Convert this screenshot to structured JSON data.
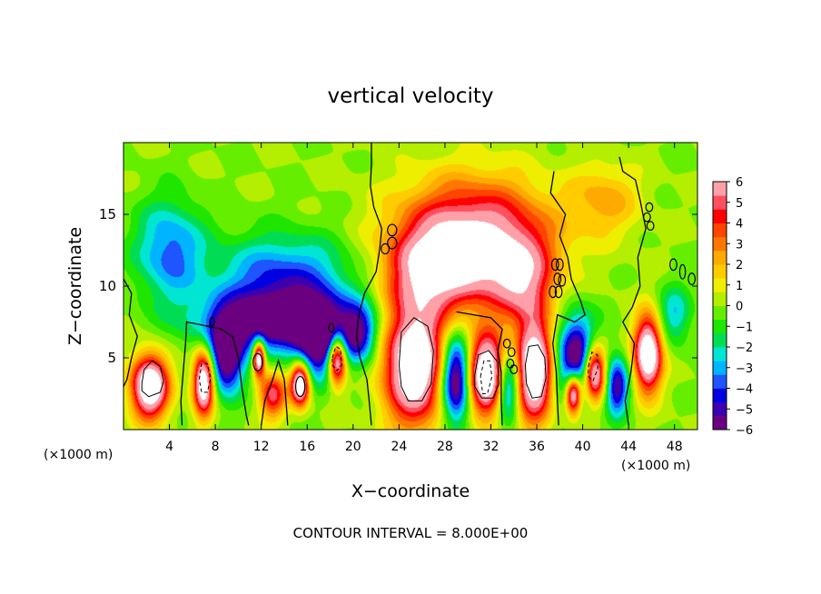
{
  "chart_data": {
    "type": "heatmap",
    "title": "vertical velocity",
    "xlabel": "X−coordinate",
    "ylabel": "Z−coordinate",
    "x_unit_left": "(×1000 m)",
    "x_unit_right": "(×1000 m)",
    "footer": "CONTOUR INTERVAL = 8.000E+00",
    "xlim": [
      0,
      50
    ],
    "ylim": [
      0,
      20
    ],
    "x_ticks": [
      4,
      8,
      12,
      16,
      20,
      24,
      28,
      32,
      36,
      40,
      44,
      48
    ],
    "y_ticks": [
      5,
      10,
      15
    ],
    "colorbar": {
      "range": [
        -6,
        6
      ],
      "labels": [
        "6",
        "5",
        "4",
        "3",
        "2",
        "1",
        "0",
        "−1",
        "−2",
        "−3",
        "−4",
        "−5",
        "−6"
      ],
      "colors": [
        "#6a0080",
        "#3c00b0",
        "#0000e0",
        "#1e55ff",
        "#00b4ff",
        "#00e6d2",
        "#00dd55",
        "#1ee600",
        "#66ee00",
        "#b4ee00",
        "#eeee00",
        "#ffcc00",
        "#ffaa00",
        "#ff7700",
        "#ff4400",
        "#ff0000",
        "#ff5060",
        "#ffa0a8"
      ]
    },
    "features": [
      {
        "x": 2.3,
        "z": 3.0,
        "w": 1.6,
        "h": 2.2,
        "sign": 1
      },
      {
        "x": 7.0,
        "z": 3.3,
        "w": 0.9,
        "h": 2.2,
        "sign": 1
      },
      {
        "x": 11.8,
        "z": 5.0,
        "w": 0.5,
        "h": 1.2,
        "sign": 1
      },
      {
        "x": 15.4,
        "z": 3.2,
        "w": 0.8,
        "h": 1.5,
        "sign": 1
      },
      {
        "x": 18.6,
        "z": 5.0,
        "w": 0.8,
        "h": 1.8,
        "sign": 1
      },
      {
        "x": 25.3,
        "z": 4.6,
        "w": 2.6,
        "h": 4.2,
        "sign": 1
      },
      {
        "x": 31.6,
        "z": 3.8,
        "w": 1.7,
        "h": 2.8,
        "sign": 1
      },
      {
        "x": 35.8,
        "z": 4.2,
        "w": 1.6,
        "h": 3.6,
        "sign": 1
      },
      {
        "x": 41.0,
        "z": 4.0,
        "w": 1.0,
        "h": 2.0,
        "sign": 1
      },
      {
        "x": 45.7,
        "z": 5.3,
        "w": 1.2,
        "h": 2.6,
        "sign": 1
      },
      {
        "x": 39.2,
        "z": 2.5,
        "w": 0.7,
        "h": 1.4,
        "sign": 1
      },
      {
        "x": 13.0,
        "z": 2.4,
        "w": 1.2,
        "h": 1.6,
        "sign": 0.55
      },
      {
        "x": 30.5,
        "z": 13.5,
        "w": 6.5,
        "h": 4.0,
        "sign": 0.7
      },
      {
        "x": 27.0,
        "z": 11.0,
        "w": 4.0,
        "h": 3.0,
        "sign": 0.55
      },
      {
        "x": 34.5,
        "z": 10.5,
        "w": 3.0,
        "h": 3.0,
        "sign": 0.5
      },
      {
        "x": 13.5,
        "z": 7.5,
        "w": 6.5,
        "h": 2.0,
        "sign": -0.7
      },
      {
        "x": 9.0,
        "z": 5.0,
        "w": 1.5,
        "h": 2.5,
        "sign": -0.75
      },
      {
        "x": 17.0,
        "z": 6.0,
        "w": 2.0,
        "h": 2.5,
        "sign": -0.65
      },
      {
        "x": 14.0,
        "z": 10.5,
        "w": 6.0,
        "h": 3.0,
        "sign": -0.45
      },
      {
        "x": 4.0,
        "z": 12.5,
        "w": 3.0,
        "h": 3.5,
        "sign": -0.4
      },
      {
        "x": 29.0,
        "z": 3.5,
        "w": 1.3,
        "h": 3.0,
        "sign": -0.85
      },
      {
        "x": 33.5,
        "z": 3.0,
        "w": 1.0,
        "h": 2.5,
        "sign": -0.6
      },
      {
        "x": 39.5,
        "z": 5.0,
        "w": 1.8,
        "h": 3.0,
        "sign": -0.75
      },
      {
        "x": 43.0,
        "z": 3.0,
        "w": 1.0,
        "h": 2.0,
        "sign": -0.6
      },
      {
        "x": 20.5,
        "z": 6.5,
        "w": 1.5,
        "h": 2.0,
        "sign": -0.5
      },
      {
        "x": 48.0,
        "z": 8.0,
        "w": 1.5,
        "h": 2.0,
        "sign": -0.3
      },
      {
        "x": 42.0,
        "z": 16.0,
        "w": 3.0,
        "h": 2.5,
        "sign": 0.25
      }
    ],
    "zero_contours": [
      [
        [
          21.6,
          20.0
        ],
        [
          21.6,
          18.5
        ],
        [
          21.5,
          17.0
        ],
        [
          21.8,
          15.5
        ],
        [
          22.5,
          14.0
        ],
        [
          22.3,
          12.5
        ],
        [
          22.0,
          11.0
        ],
        [
          21.0,
          9.5
        ],
        [
          20.5,
          8.0
        ],
        [
          20.3,
          6.5
        ],
        [
          20.6,
          5.0
        ],
        [
          21.2,
          3.5
        ],
        [
          21.4,
          2.0
        ],
        [
          21.6,
          0.3
        ]
      ],
      [
        [
          37.5,
          18.0
        ],
        [
          37.2,
          16.5
        ],
        [
          38.5,
          15.0
        ],
        [
          38.0,
          13.5
        ],
        [
          38.7,
          12.0
        ],
        [
          39.0,
          10.5
        ],
        [
          39.8,
          9.0
        ],
        [
          40.2,
          8.0
        ],
        [
          39.3,
          7.5
        ],
        [
          37.8,
          8.0
        ],
        [
          37.4,
          6.0
        ],
        [
          37.7,
          4.0
        ],
        [
          37.8,
          2.0
        ],
        [
          37.9,
          0.3
        ]
      ],
      [
        [
          43.2,
          19.0
        ],
        [
          43.5,
          18.0
        ],
        [
          44.6,
          17.4
        ],
        [
          45.0,
          16.0
        ],
        [
          45.5,
          14.0
        ],
        [
          44.8,
          12.0
        ],
        [
          45.0,
          10.0
        ],
        [
          44.3,
          8.5
        ],
        [
          43.5,
          7.5
        ],
        [
          44.5,
          6.0
        ],
        [
          44.2,
          4.0
        ],
        [
          43.7,
          2.0
        ],
        [
          44.0,
          0.3
        ]
      ],
      [
        [
          0.0,
          10.5
        ],
        [
          0.7,
          9.5
        ],
        [
          0.5,
          8.0
        ],
        [
          1.2,
          6.5
        ],
        [
          0.7,
          5.0
        ],
        [
          0.3,
          3.5
        ],
        [
          0.0,
          3.0
        ]
      ],
      [
        [
          5.1,
          0.3
        ],
        [
          5.0,
          2.0
        ],
        [
          5.2,
          4.0
        ],
        [
          5.4,
          6.0
        ],
        [
          5.5,
          7.5
        ],
        [
          6.8,
          7.3
        ],
        [
          8.5,
          7.0
        ],
        [
          9.5,
          6.5
        ],
        [
          10.0,
          5.0
        ],
        [
          10.3,
          3.0
        ],
        [
          10.7,
          1.0
        ],
        [
          10.9,
          0.3
        ]
      ],
      [
        [
          12.0,
          0.3
        ],
        [
          12.3,
          2.0
        ],
        [
          13.0,
          3.5
        ],
        [
          13.5,
          4.8
        ],
        [
          14.0,
          3.5
        ],
        [
          14.2,
          1.5
        ],
        [
          14.3,
          0.3
        ]
      ],
      [
        [
          29.0,
          8.2
        ],
        [
          30.5,
          8.0
        ],
        [
          32.0,
          7.8
        ],
        [
          33.0,
          7.0
        ],
        [
          32.6,
          5.5
        ],
        [
          32.9,
          4.0
        ],
        [
          32.9,
          2.0
        ],
        [
          33.0,
          0.3
        ]
      ]
    ],
    "pos_contours": [
      [
        [
          1.6,
          3.2
        ],
        [
          1.8,
          4.2
        ],
        [
          2.5,
          4.8
        ],
        [
          3.2,
          4.4
        ],
        [
          3.5,
          3.4
        ],
        [
          3.2,
          2.6
        ],
        [
          2.2,
          2.3
        ],
        [
          1.6,
          2.7
        ],
        [
          1.6,
          3.2
        ]
      ],
      [
        [
          24.0,
          4.5
        ],
        [
          24.2,
          6.8
        ],
        [
          25.3,
          7.8
        ],
        [
          26.5,
          7.2
        ],
        [
          27.0,
          5.5
        ],
        [
          26.8,
          3.2
        ],
        [
          26.0,
          2.0
        ],
        [
          24.8,
          2.0
        ],
        [
          24.2,
          3.0
        ],
        [
          24.0,
          4.5
        ]
      ],
      [
        [
          30.6,
          3.8
        ],
        [
          30.9,
          5.2
        ],
        [
          31.8,
          5.5
        ],
        [
          32.6,
          4.7
        ],
        [
          32.7,
          3.2
        ],
        [
          32.2,
          2.2
        ],
        [
          31.2,
          2.2
        ],
        [
          30.6,
          3.0
        ],
        [
          30.6,
          3.8
        ]
      ],
      [
        [
          35.0,
          4.5
        ],
        [
          35.3,
          5.8
        ],
        [
          36.1,
          5.9
        ],
        [
          36.7,
          5.0
        ],
        [
          36.8,
          3.6
        ],
        [
          36.4,
          2.3
        ],
        [
          35.6,
          2.2
        ],
        [
          35.1,
          3.2
        ],
        [
          35.0,
          4.5
        ]
      ]
    ],
    "neg_contours": [
      [
        [
          6.6,
          3.5
        ],
        [
          6.8,
          4.6
        ],
        [
          7.3,
          4.6
        ],
        [
          7.6,
          3.6
        ],
        [
          7.3,
          2.6
        ],
        [
          6.8,
          2.6
        ],
        [
          6.6,
          3.5
        ]
      ],
      [
        [
          18.2,
          5.0
        ],
        [
          18.5,
          5.8
        ],
        [
          18.9,
          5.6
        ],
        [
          19.0,
          4.5
        ],
        [
          18.6,
          4.1
        ],
        [
          18.2,
          4.5
        ],
        [
          18.2,
          5.0
        ]
      ],
      [
        [
          31.1,
          3.7
        ],
        [
          31.4,
          4.8
        ],
        [
          31.9,
          4.8
        ],
        [
          32.1,
          3.7
        ],
        [
          31.7,
          2.5
        ],
        [
          31.3,
          2.5
        ],
        [
          31.1,
          3.7
        ]
      ],
      [
        [
          40.5,
          4.4
        ],
        [
          40.8,
          5.4
        ],
        [
          41.3,
          5.2
        ],
        [
          41.3,
          4.2
        ],
        [
          40.9,
          3.4
        ],
        [
          40.5,
          3.7
        ],
        [
          40.5,
          4.4
        ]
      ]
    ],
    "small_loops": [
      [
        23.4,
        13.9,
        0.4,
        0.4
      ],
      [
        23.4,
        13.0,
        0.4,
        0.4
      ],
      [
        22.8,
        12.6,
        0.35,
        0.35
      ],
      [
        37.6,
        11.5,
        0.3,
        0.4
      ],
      [
        38.0,
        11.5,
        0.3,
        0.4
      ],
      [
        37.8,
        10.5,
        0.3,
        0.4
      ],
      [
        38.2,
        10.4,
        0.3,
        0.4
      ],
      [
        37.4,
        9.6,
        0.3,
        0.4
      ],
      [
        37.9,
        9.6,
        0.3,
        0.4
      ],
      [
        33.4,
        6.0,
        0.3,
        0.3
      ],
      [
        33.8,
        5.4,
        0.3,
        0.3
      ],
      [
        33.7,
        4.6,
        0.3,
        0.3
      ],
      [
        34.0,
        4.2,
        0.3,
        0.3
      ],
      [
        45.8,
        15.5,
        0.3,
        0.3
      ],
      [
        45.6,
        14.8,
        0.3,
        0.3
      ],
      [
        45.9,
        14.2,
        0.3,
        0.3
      ],
      [
        47.9,
        11.5,
        0.3,
        0.4
      ],
      [
        48.7,
        11.0,
        0.25,
        0.5
      ],
      [
        49.5,
        10.5,
        0.3,
        0.4
      ],
      [
        11.7,
        4.7,
        0.4,
        0.6
      ],
      [
        15.4,
        3.0,
        0.4,
        0.7
      ],
      [
        7.7,
        7.5,
        0.2,
        0.3
      ],
      [
        18.1,
        7.1,
        0.2,
        0.3
      ]
    ]
  }
}
